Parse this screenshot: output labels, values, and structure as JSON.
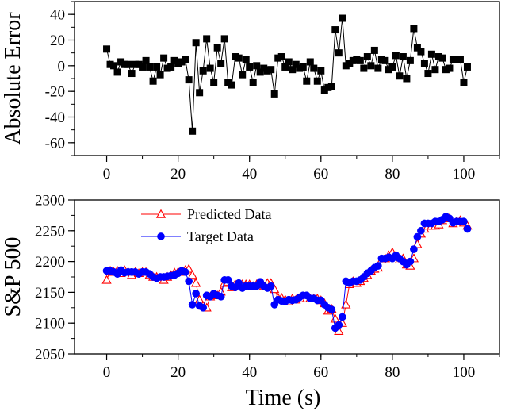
{
  "chart_data": [
    {
      "type": "line",
      "title": "",
      "xlabel": "",
      "ylabel": "Absolute Error",
      "xlim": [
        -9,
        110
      ],
      "ylim": [
        -70,
        50
      ],
      "x_ticks": [
        0,
        20,
        40,
        60,
        80,
        100
      ],
      "y_ticks": [
        -60,
        -40,
        -20,
        0,
        20,
        40
      ],
      "series": [
        {
          "name": "Absolute Error",
          "marker": "square",
          "color": "#000000",
          "x": [
            0,
            1,
            2,
            3,
            4,
            5,
            6,
            7,
            8,
            9,
            10,
            11,
            12,
            13,
            14,
            15,
            16,
            17,
            18,
            19,
            20,
            21,
            22,
            23,
            24,
            25,
            26,
            27,
            28,
            29,
            30,
            31,
            32,
            33,
            34,
            35,
            36,
            37,
            38,
            39,
            40,
            41,
            42,
            43,
            44,
            45,
            46,
            47,
            48,
            49,
            50,
            51,
            52,
            53,
            54,
            55,
            56,
            57,
            58,
            59,
            60,
            61,
            62,
            63,
            64,
            65,
            66,
            67,
            68,
            69,
            70,
            71,
            72,
            73,
            74,
            75,
            76,
            77,
            78,
            79,
            80,
            81,
            82,
            83,
            84,
            85,
            86,
            87,
            88,
            89,
            90,
            91,
            92,
            93,
            94,
            95,
            96,
            97,
            98,
            99,
            100,
            101
          ],
          "values": [
            13,
            1,
            0,
            -5,
            3,
            1,
            1,
            -6,
            1,
            1,
            -1,
            4,
            -1,
            -12,
            -1,
            -7,
            6,
            -2,
            -1,
            4,
            2,
            3,
            5,
            -11,
            -51,
            18,
            -21,
            -4,
            21,
            -2,
            -13,
            14,
            2,
            21,
            -13,
            -15,
            7,
            6,
            -7,
            5,
            -1,
            -13,
            0,
            -5,
            -2,
            -4,
            -3,
            -22,
            6,
            7,
            -1,
            3,
            -3,
            1,
            -2,
            -1,
            -12,
            3,
            -2,
            -12,
            -4,
            -19,
            -17,
            -16,
            28,
            10,
            37,
            0,
            2,
            4,
            5,
            4,
            -2,
            7,
            0,
            12,
            -2,
            5,
            4,
            -3,
            -1,
            8,
            -8,
            7,
            -10,
            4,
            29,
            14,
            11,
            2,
            -6,
            9,
            -3,
            7,
            6,
            -3,
            -2,
            5,
            5,
            5,
            -13,
            -1
          ]
        }
      ]
    },
    {
      "type": "line",
      "title": "",
      "xlabel": "Time (s)",
      "ylabel": "S&P 500",
      "xlim": [
        -9,
        110
      ],
      "ylim": [
        2050,
        2300
      ],
      "x_ticks": [
        0,
        20,
        40,
        60,
        80,
        100
      ],
      "y_ticks": [
        2050,
        2100,
        2150,
        2200,
        2250,
        2300
      ],
      "legend_position": "top-left",
      "series": [
        {
          "name": "Predicted Data",
          "marker": "open-triangle",
          "color": "#ff0000",
          "x": [
            0,
            1,
            2,
            3,
            4,
            5,
            6,
            7,
            8,
            9,
            10,
            11,
            12,
            13,
            14,
            15,
            16,
            17,
            18,
            19,
            20,
            21,
            22,
            23,
            24,
            25,
            26,
            27,
            28,
            29,
            30,
            31,
            32,
            33,
            34,
            35,
            36,
            37,
            38,
            39,
            40,
            41,
            42,
            43,
            44,
            45,
            46,
            47,
            48,
            49,
            50,
            51,
            52,
            53,
            54,
            55,
            56,
            57,
            58,
            59,
            60,
            61,
            62,
            63,
            64,
            65,
            66,
            67,
            68,
            69,
            70,
            71,
            72,
            73,
            74,
            75,
            76,
            77,
            78,
            79,
            80,
            81,
            82,
            83,
            84,
            85,
            86,
            87,
            88,
            89,
            90,
            91,
            92,
            93,
            94,
            95,
            96,
            97,
            98,
            99,
            100,
            101
          ],
          "values": [
            2170,
            2185,
            2183,
            2185,
            2181,
            2186,
            2183,
            2178,
            2183,
            2181,
            2183,
            2183,
            2178,
            2175,
            2175,
            2172,
            2170,
            2175,
            2178,
            2182,
            2183,
            2183,
            2186,
            2188,
            2178,
            2165,
            2138,
            2128,
            2125,
            2143,
            2145,
            2145,
            2151,
            2165,
            2167,
            2158,
            2163,
            2163,
            2163,
            2163,
            2163,
            2160,
            2163,
            2163,
            2160,
            2165,
            2165,
            2155,
            2141,
            2141,
            2138,
            2135,
            2140,
            2138,
            2140,
            2140,
            2140,
            2140,
            2140,
            2140,
            2137,
            2132,
            2120,
            2123,
            2107,
            2087,
            2100,
            2130,
            2163,
            2168,
            2165,
            2168,
            2173,
            2178,
            2185,
            2188,
            2190,
            2203,
            2205,
            2210,
            2215,
            2210,
            2203,
            2205,
            2195,
            2193,
            2205,
            2228,
            2245,
            2253,
            2258,
            2258,
            2258,
            2260,
            2267,
            2270,
            2270,
            2262,
            2265,
            2267,
            2263,
            2258
          ]
        },
        {
          "name": "Target Data",
          "marker": "filled-circle",
          "color": "#0000ff",
          "x": [
            0,
            1,
            2,
            3,
            4,
            5,
            6,
            7,
            8,
            9,
            10,
            11,
            12,
            13,
            14,
            15,
            16,
            17,
            18,
            19,
            20,
            21,
            22,
            23,
            24,
            25,
            26,
            27,
            28,
            29,
            30,
            31,
            32,
            33,
            34,
            35,
            36,
            37,
            38,
            39,
            40,
            41,
            42,
            43,
            44,
            45,
            46,
            47,
            48,
            49,
            50,
            51,
            52,
            53,
            54,
            55,
            56,
            57,
            58,
            59,
            60,
            61,
            62,
            63,
            64,
            65,
            66,
            67,
            68,
            69,
            70,
            71,
            72,
            73,
            74,
            75,
            76,
            77,
            78,
            79,
            80,
            81,
            82,
            83,
            84,
            85,
            86,
            87,
            88,
            89,
            90,
            91,
            92,
            93,
            94,
            95,
            96,
            97,
            98,
            99,
            100,
            101
          ],
          "values": [
            2185,
            2185,
            2183,
            2180,
            2186,
            2182,
            2183,
            2183,
            2183,
            2180,
            2183,
            2183,
            2180,
            2175,
            2173,
            2175,
            2175,
            2176,
            2177,
            2178,
            2181,
            2185,
            2183,
            2168,
            2130,
            2148,
            2128,
            2125,
            2145,
            2143,
            2148,
            2145,
            2143,
            2170,
            2170,
            2160,
            2158,
            2165,
            2157,
            2160,
            2160,
            2160,
            2160,
            2167,
            2160,
            2157,
            2160,
            2130,
            2138,
            2136,
            2135,
            2138,
            2137,
            2138,
            2142,
            2145,
            2145,
            2140,
            2140,
            2137,
            2137,
            2130,
            2125,
            2122,
            2092,
            2097,
            2110,
            2168,
            2165,
            2168,
            2168,
            2170,
            2175,
            2181,
            2185,
            2190,
            2193,
            2205,
            2205,
            2207,
            2205,
            2210,
            2205,
            2200,
            2195,
            2200,
            2220,
            2240,
            2250,
            2262,
            2262,
            2262,
            2265,
            2265,
            2268,
            2273,
            2270,
            2263,
            2265,
            2265,
            2265,
            2253
          ]
        }
      ]
    }
  ]
}
